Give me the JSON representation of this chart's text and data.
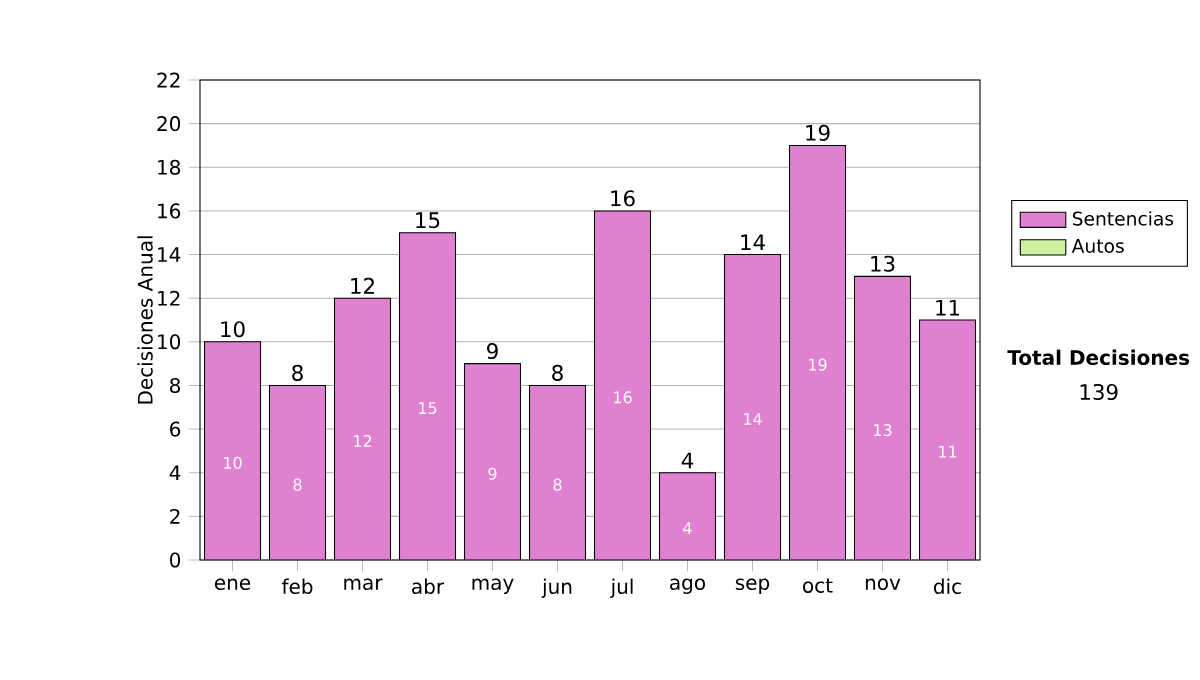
{
  "chart_data": {
    "type": "bar",
    "stacked": true,
    "ylabel": "Decisiones Anual",
    "categories": [
      "ene",
      "feb",
      "mar",
      "abr",
      "may",
      "jun",
      "jul",
      "ago",
      "sep",
      "oct",
      "nov",
      "dic"
    ],
    "series": [
      {
        "name": "Sentencias",
        "color": "#e080d0",
        "values": [
          10,
          8,
          12,
          15,
          9,
          8,
          16,
          4,
          14,
          19,
          13,
          11
        ],
        "value_labels": [
          "10",
          "8",
          "12",
          "15",
          "9",
          "8",
          "16",
          "4",
          "14",
          "19",
          "13",
          "11"
        ]
      },
      {
        "name": "Autos",
        "color": "#ccf2a0",
        "values": [
          0,
          0,
          0,
          0,
          0,
          0,
          0,
          0,
          0,
          0,
          0,
          0
        ]
      }
    ],
    "totals": [
      "10",
      "8",
      "12",
      "15",
      "9",
      "8",
      "16",
      "4",
      "14",
      "19",
      "13",
      "11"
    ],
    "ylim": [
      0,
      22
    ],
    "yticks": [
      0,
      2,
      4,
      6,
      8,
      10,
      12,
      14,
      16,
      18,
      20,
      22
    ],
    "grid": "y",
    "legend": "right",
    "annotations": [
      "Total Decisiones",
      "139"
    ]
  }
}
